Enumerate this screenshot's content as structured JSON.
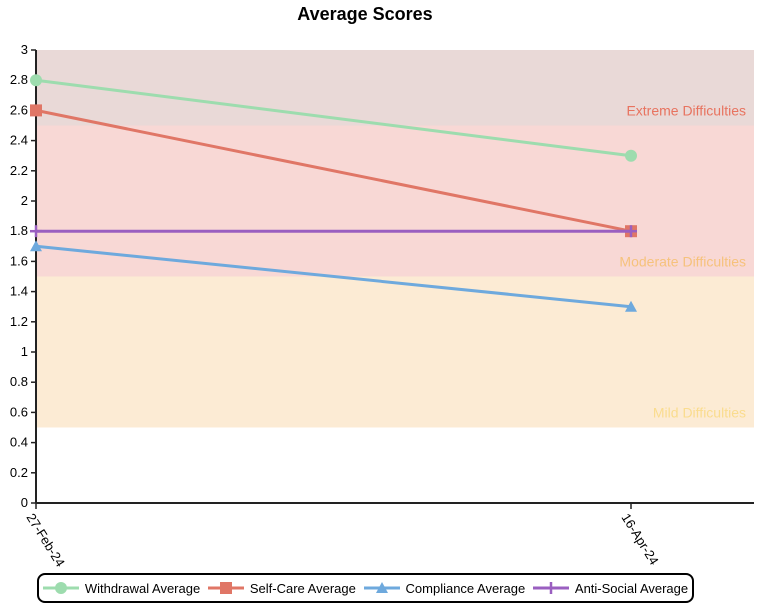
{
  "chart_data": {
    "type": "line",
    "title": "Average Scores",
    "xlabel": "",
    "ylabel": "",
    "categories": [
      "27-Feb-24",
      "16-Apr-24"
    ],
    "ylim": [
      0,
      3
    ],
    "y_ticks": [
      "0",
      "0.2",
      "0.4",
      "0.6",
      "0.8",
      "1",
      "1.2",
      "1.4",
      "1.6",
      "1.8",
      "2",
      "2.2",
      "2.4",
      "2.6",
      "2.8",
      "3"
    ],
    "bands": [
      {
        "label": "Extreme Difficulties",
        "from": 2.5,
        "to": 3,
        "color": "#e9d9d7",
        "text_color": "#e8735f"
      },
      {
        "label": "Moderate Difficulties",
        "from": 1.5,
        "to": 2.5,
        "color": "#f8d8d5",
        "text_color": "#f6c27c"
      },
      {
        "label": "Mild Difficulties",
        "from": 0.5,
        "to": 1.5,
        "color": "#fcebd4",
        "text_color": "#fadc8e"
      }
    ],
    "series": [
      {
        "name": "Withdrawal Average",
        "values": [
          2.8,
          2.3
        ],
        "color": "#9ddcae",
        "marker": "circle"
      },
      {
        "name": "Self-Care Average",
        "values": [
          2.6,
          1.8
        ],
        "color": "#e07666",
        "marker": "square"
      },
      {
        "name": "Compliance Average",
        "values": [
          1.7,
          1.3
        ],
        "color": "#6ea9dd",
        "marker": "triangle"
      },
      {
        "name": "Anti-Social Average",
        "values": [
          1.8,
          1.8
        ],
        "color": "#9a5fc0",
        "marker": "cross"
      }
    ],
    "legend_position": "bottom"
  }
}
